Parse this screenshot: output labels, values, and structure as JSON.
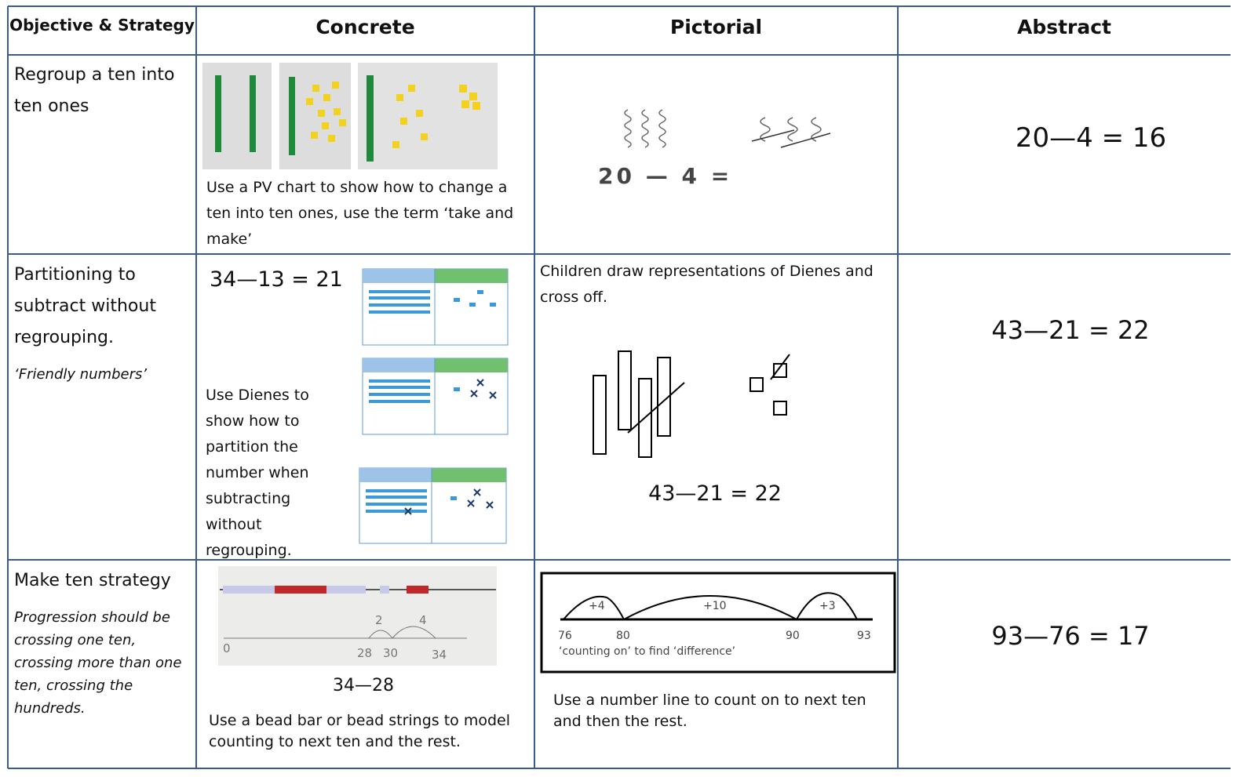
{
  "table": {
    "headers": [
      "Objective & Strategy",
      "Concrete",
      "Pictorial",
      "Abstract"
    ],
    "rows": [
      {
        "objective": "Regroup a ten into ten ones",
        "concrete": {
          "caption": "Use a PV chart to show how to change a ten into ten ones, use the term ‘take and make’"
        },
        "pictorial": {
          "equation": "20 — 4 ="
        },
        "abstract": "20—4 = 16"
      },
      {
        "objective": "Partitioning to subtract without regrouping.",
        "note": "‘Friendly numbers’",
        "concrete": {
          "equation": "34—13 = 21",
          "caption": "Use Dienes to show how to partition the number when subtracting without regrouping."
        },
        "pictorial": {
          "caption": "Children draw representations of Dienes and cross off.",
          "equation": "43—21 = 22"
        },
        "abstract": "43—21 = 22"
      },
      {
        "objective": "Make ten strategy",
        "note": "Progression should be crossing one ten, crossing more than one ten, crossing the hundreds.",
        "concrete": {
          "image_labels": [
            "0",
            "2",
            "4",
            "28",
            "30",
            "34"
          ],
          "equation": "34—28",
          "caption": "Use a bead bar or bead strings  to model counting to next ten and the rest."
        },
        "pictorial": {
          "jumps": [
            "+4",
            "+10",
            "+3"
          ],
          "numbers": [
            "76",
            "80",
            "90",
            "93"
          ],
          "note": "‘counting on’ to find ‘difference’",
          "caption": "Use a number line to count on to next ten and then the rest."
        },
        "abstract": "93—76 = 17"
      }
    ]
  }
}
